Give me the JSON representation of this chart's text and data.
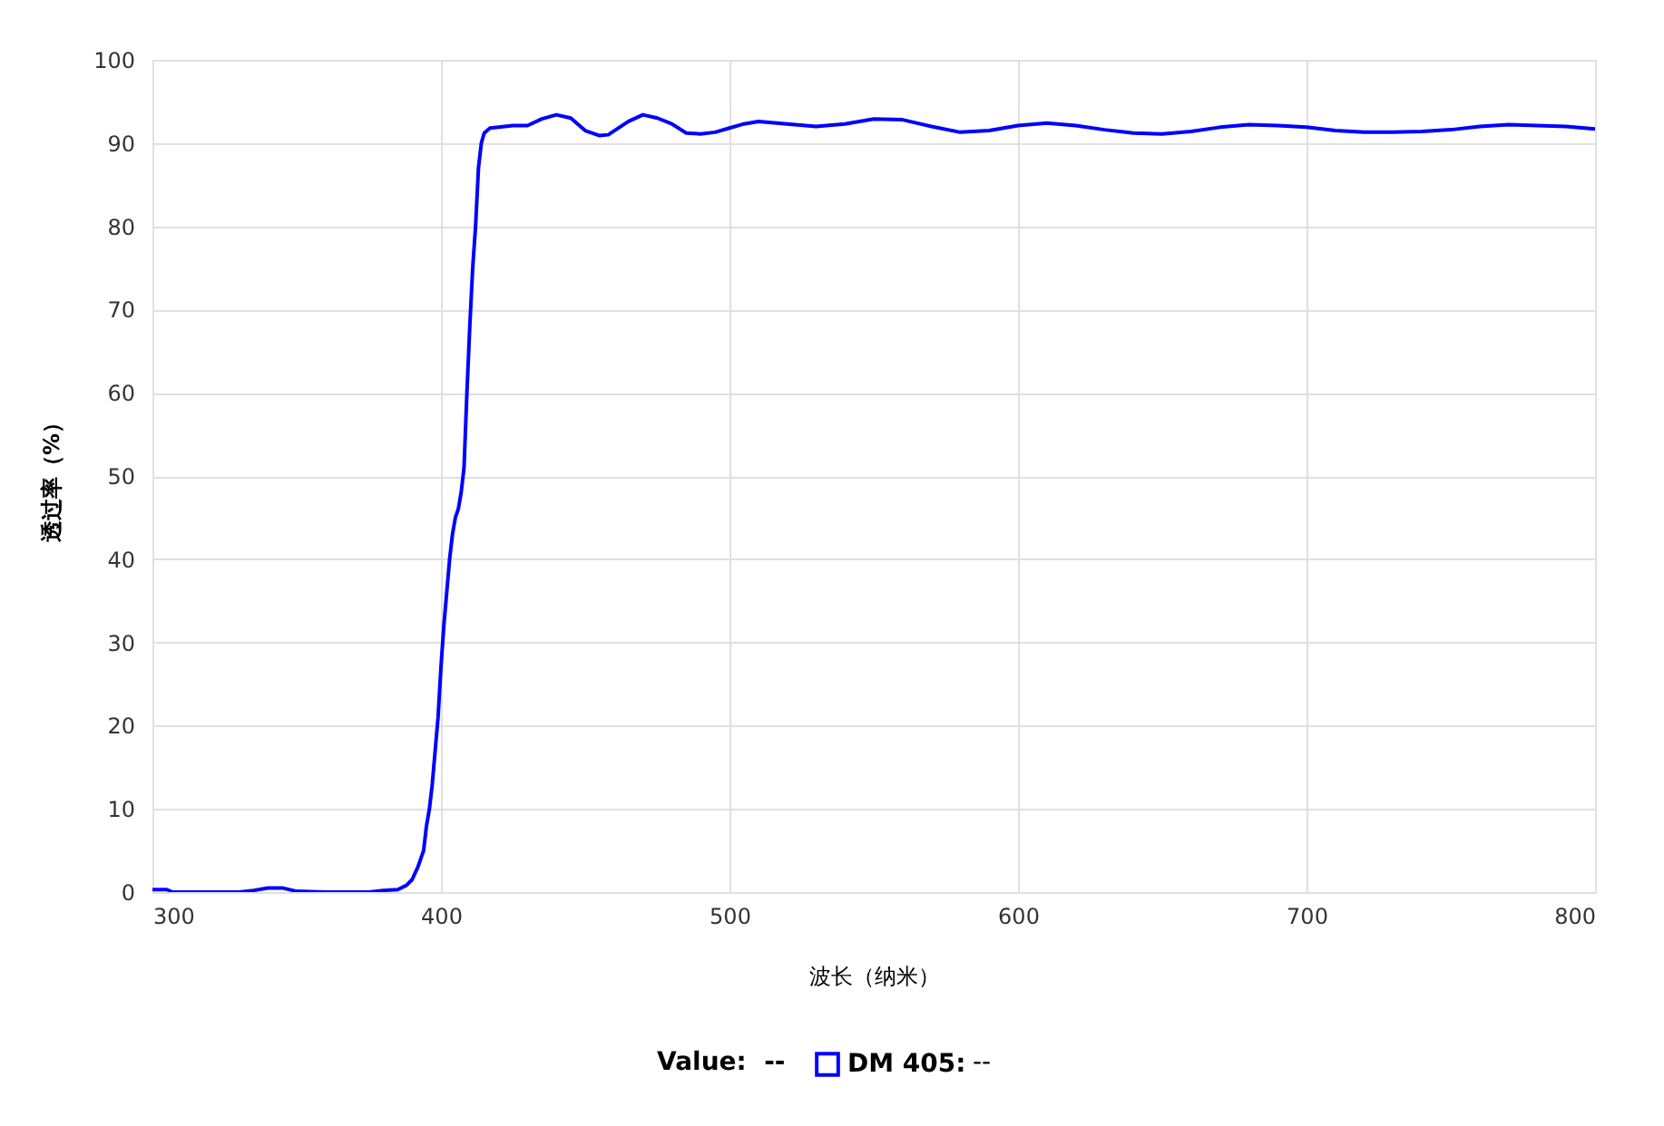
{
  "chart_data": {
    "type": "line",
    "xlabel": "波长（纳米）",
    "ylabel": "透过率（%）",
    "x": [
      300,
      305,
      307,
      330,
      335,
      340,
      345,
      350,
      360,
      375,
      380,
      385,
      388,
      390,
      392,
      394,
      395,
      396,
      397,
      398,
      399,
      400,
      401,
      402,
      403,
      404,
      405,
      406,
      407,
      408,
      409,
      410,
      411,
      412,
      413,
      414,
      415,
      417,
      420,
      425,
      430,
      435,
      440,
      445,
      450,
      455,
      458,
      465,
      470,
      475,
      480,
      485,
      490,
      495,
      500,
      505,
      510,
      520,
      530,
      540,
      550,
      560,
      570,
      580,
      590,
      600,
      610,
      620,
      630,
      640,
      650,
      660,
      670,
      680,
      690,
      700,
      710,
      720,
      730,
      740,
      750,
      760,
      770,
      780,
      790,
      800
    ],
    "series": [
      {
        "name": "DM 405:",
        "color": "#0000ff",
        "values": [
          0.3,
          0.3,
          0,
          0,
          0.2,
          0.5,
          0.5,
          0.1,
          0,
          0,
          0.2,
          0.3,
          0.8,
          1.5,
          3,
          5,
          8,
          10,
          13,
          17,
          21,
          27,
          32,
          36,
          40,
          43,
          45,
          46,
          48,
          51,
          60,
          68,
          75,
          80,
          87,
          90,
          91.2,
          91.8,
          91.9,
          92.1,
          92.1,
          92.9,
          93.4,
          93,
          91.5,
          90.9,
          91,
          92.6,
          93.4,
          93,
          92.3,
          91.2,
          91.1,
          91.3,
          91.8,
          92.3,
          92.6,
          92.3,
          92,
          92.3,
          92.9,
          92.8,
          92,
          91.3,
          91.5,
          92.1,
          92.4,
          92.1,
          91.6,
          91.2,
          91.1,
          91.4,
          91.9,
          92.2,
          92.1,
          91.9,
          91.5,
          91.3,
          91.3,
          91.4,
          91.6,
          92,
          92.2,
          92.1,
          92,
          91.7
        ]
      }
    ],
    "xlim": [
      300,
      800
    ],
    "xticks": [
      300,
      400,
      500,
      600,
      700,
      800
    ],
    "ylim": [
      0,
      100
    ],
    "yticks": [
      0,
      10,
      20,
      30,
      40,
      50,
      60,
      70,
      80,
      90,
      100
    ],
    "grid": true,
    "legend": "bottom",
    "marker": "none",
    "line_style": "solid",
    "annotations": [
      "Value:  --",
      "--"
    ]
  }
}
